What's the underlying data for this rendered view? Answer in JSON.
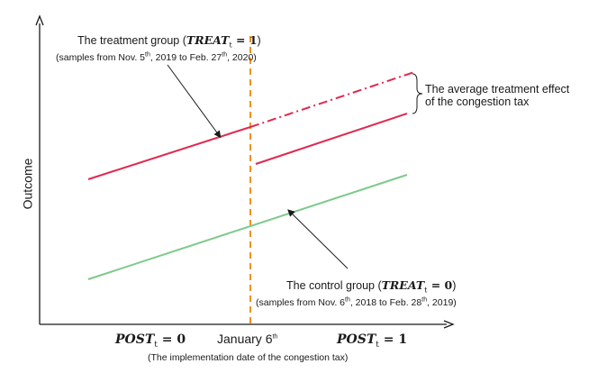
{
  "treatment_label": {
    "title_prefix": "The treatment group (",
    "math_treat": "TREAT",
    "math_sub": "t",
    "math_eq": " = 1",
    "title_suffix": ")",
    "sub_prefix": "(samples from Nov. 5",
    "sub_sup1": "th",
    "sub_mid": ", 2019 to Feb. 27",
    "sub_sup2": "th",
    "sub_suffix": ", 2020)"
  },
  "control_label": {
    "title_prefix": "The control group (",
    "math_treat": "TREAT",
    "math_sub": "t",
    "math_eq": " = 0",
    "title_suffix": ")",
    "sub_prefix": "(samples from Nov. 6",
    "sub_sup1": "th",
    "sub_mid": ", 2018 to Feb. 28",
    "sub_sup2": "th",
    "sub_suffix": ", 2019)"
  },
  "effect_label": {
    "line1": "The average treatment effect",
    "line2": "of the congestion tax"
  },
  "y_axis_label": "Outcome",
  "x_axis": {
    "left_post": "POST",
    "left_sub": "t",
    "left_eq": " = 0",
    "center_text": "January 6",
    "center_sup": "th",
    "right_post": "POST",
    "right_sub": "t",
    "right_eq": " = 1",
    "caption": "(The implementation date of the congestion tax)"
  },
  "colors": {
    "treatment": "#e0294f",
    "control": "#7dc98a",
    "cutoff": "#f0921e",
    "axis": "#1a1a1a"
  }
}
